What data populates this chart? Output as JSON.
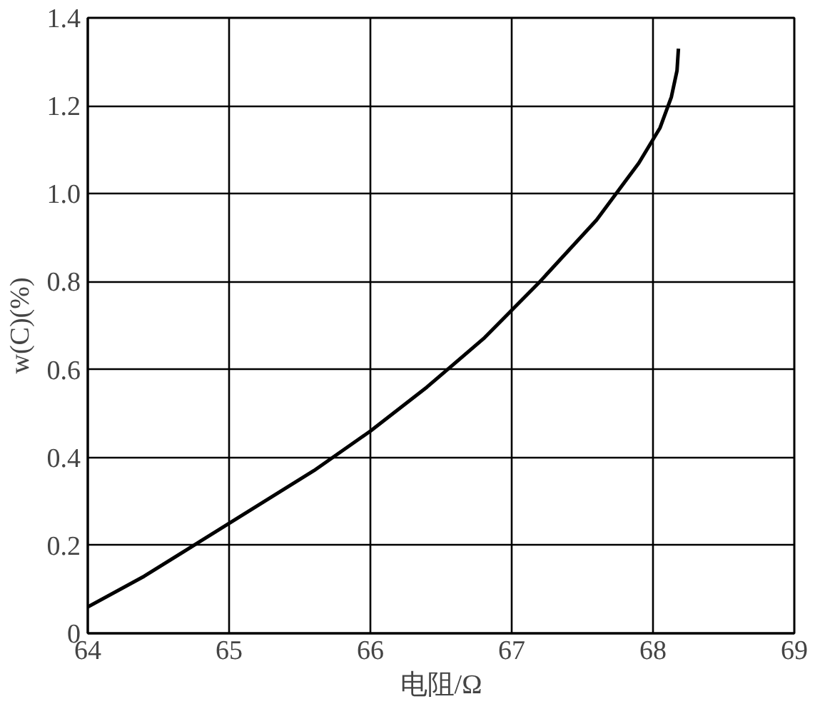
{
  "chart_data": {
    "type": "line",
    "xlabel": "电阻/Ω",
    "ylabel": "w(C)(%)",
    "x": [
      64,
      64.4,
      64.8,
      65.2,
      65.6,
      66,
      66.4,
      66.8,
      67.2,
      67.6,
      67.9,
      68.05,
      68.13,
      68.17,
      68.18
    ],
    "series": [
      {
        "color": "#000000",
        "values": [
          0.06,
          0.13,
          0.21,
          0.29,
          0.37,
          0.46,
          0.56,
          0.67,
          0.8,
          0.94,
          1.07,
          1.15,
          1.22,
          1.28,
          1.33
        ]
      }
    ],
    "xlim": [
      64,
      69
    ],
    "ylim": [
      0,
      1.4
    ],
    "xticks": [
      64,
      65,
      66,
      67,
      68,
      69
    ],
    "yticks": [
      0,
      0.2,
      0.4,
      0.6,
      0.8,
      {
        "value": 1,
        "label": "1.0"
      },
      1.2,
      1.4
    ],
    "grid": true,
    "marker": "none",
    "line_style": "solid"
  }
}
